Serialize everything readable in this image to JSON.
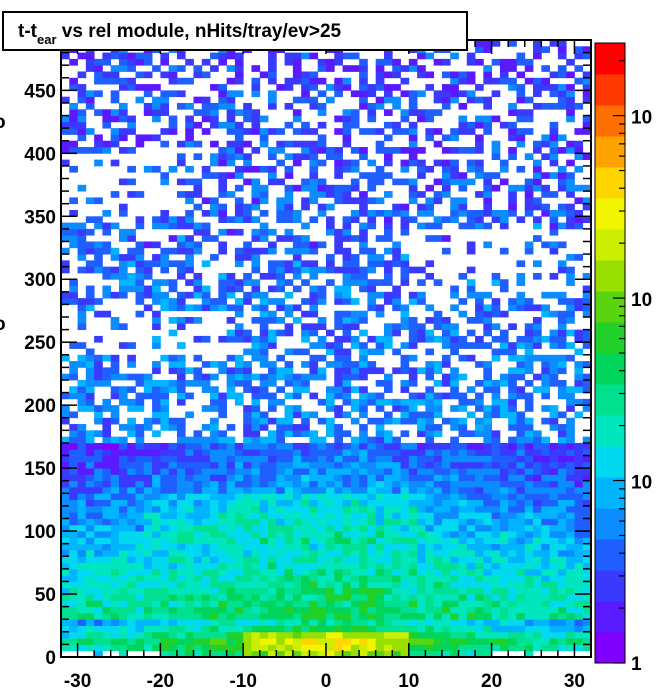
{
  "chart_data": {
    "type": "heatmap",
    "title": "t-t",
    "title_subscript": "ear",
    "title_rest": " vs rel module, nHits/tray/ev>25",
    "xlabel": "",
    "ylabel": "",
    "xlim": [
      -32,
      32
    ],
    "ylim": [
      0,
      490
    ],
    "x_ticks": [
      -30,
      -20,
      -10,
      0,
      10,
      20,
      30
    ],
    "x_tick_labels": [
      "-30",
      "-20",
      "-10",
      "0",
      "10",
      "20",
      "30"
    ],
    "y_ticks": [
      0,
      50,
      100,
      150,
      200,
      250,
      300,
      350,
      400,
      450
    ],
    "y_tick_labels": [
      "0",
      "50",
      "100",
      "150",
      "200",
      "250",
      "300",
      "350",
      "400",
      "450"
    ],
    "colorbar": {
      "scale": "log",
      "range": [
        1,
        2500
      ],
      "tick_labels": [
        "1",
        "10",
        "10",
        "10"
      ],
      "palette": [
        "#7f00ff",
        "#5a1aff",
        "#3a3aff",
        "#1f5fff",
        "#0b8cff",
        "#00b4ff",
        "#00d9ef",
        "#00e6bf",
        "#00e08f",
        "#00d45a",
        "#21d12a",
        "#5ad40f",
        "#99e000",
        "#ccee00",
        "#f2f500",
        "#ffd500",
        "#ffa300",
        "#ff6e00",
        "#ff3a00",
        "#ff0000"
      ]
    },
    "data_summary": {
      "x_bins": 64,
      "y_bin_width": 5,
      "bands": [
        {
          "y_range": [
            0,
            30
          ],
          "level": "highest (green to yellow, peak near x=0, y≈10)"
        },
        {
          "y_range": [
            30,
            170
          ],
          "level": "medium (cyan to green)"
        },
        {
          "y_range": [
            170,
            490
          ],
          "level": "low (blue to violet, sparse)"
        }
      ]
    }
  }
}
